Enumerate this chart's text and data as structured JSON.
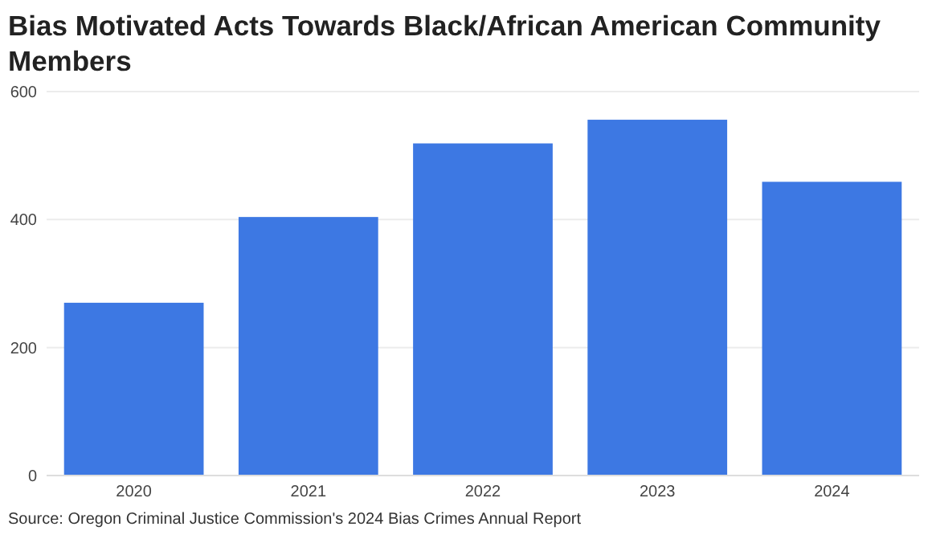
{
  "chart_data": {
    "type": "bar",
    "title": "Bias Motivated Acts Towards Black/African American Community Members",
    "categories": [
      "2020",
      "2021",
      "2022",
      "2023",
      "2024"
    ],
    "values": [
      270,
      404,
      519,
      556,
      459
    ],
    "color": "#3d78e3",
    "ylim": [
      0,
      600
    ],
    "yticks": [
      0,
      200,
      400,
      600
    ],
    "grid": "y",
    "annotations": [
      "Source: Oregon Criminal Justice Commission's 2024 Bias Crimes Annual Report"
    ]
  }
}
